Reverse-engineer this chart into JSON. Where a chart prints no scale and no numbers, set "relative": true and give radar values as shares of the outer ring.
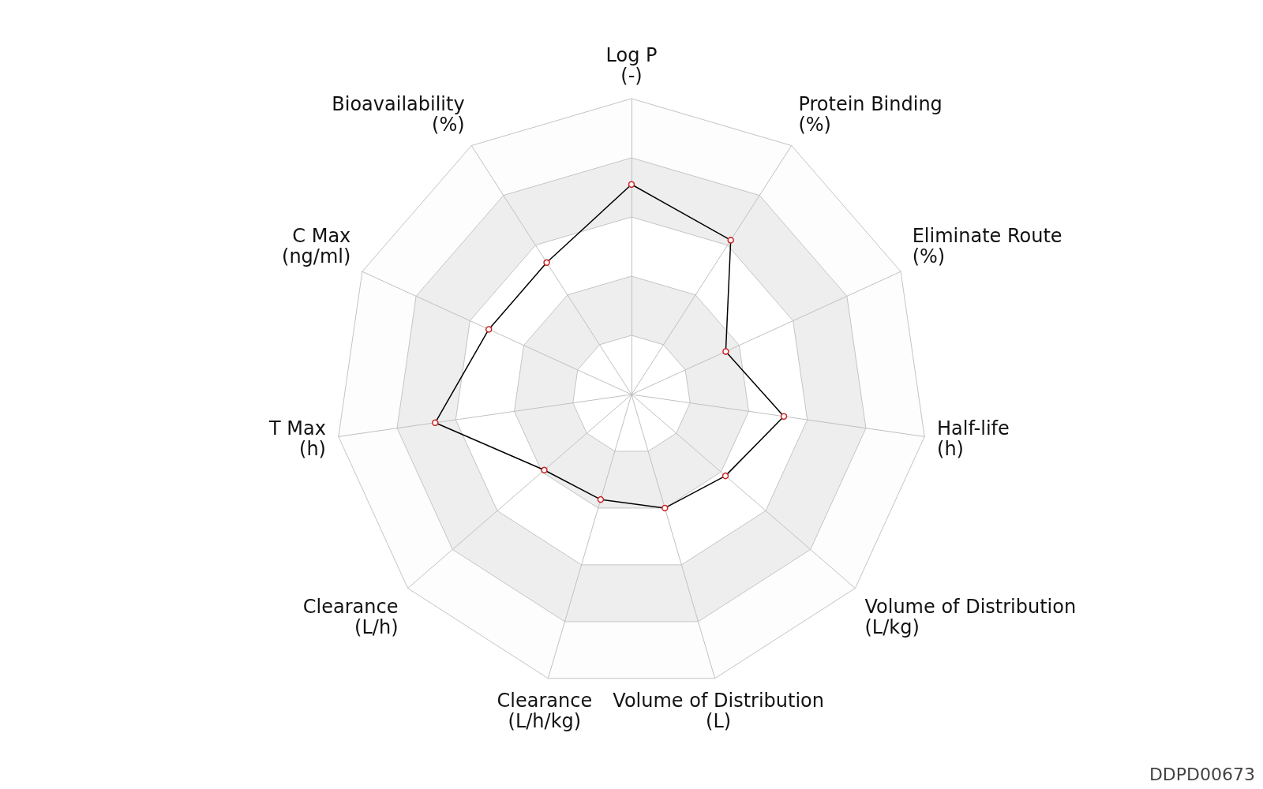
{
  "chart_data": {
    "type": "radar",
    "relative": true,
    "marker": "circle",
    "categories": [
      "Log P\n(-)",
      "Protein Binding\n(%)",
      "Eliminate Route\n(%)",
      "Half-life\n(h)",
      "Volume of Distribution\n(L/kg)",
      "Volume of Distribution\n(L)",
      "Clearance\n(L/h/kg)",
      "Clearance\n(L/h)",
      "T Max\n(h)",
      "C Max\n(ng/ml)",
      "Bioavailability\n(%)"
    ],
    "series": [
      {
        "color": "#000000",
        "values": [
          0.71,
          0.62,
          0.35,
          0.52,
          0.42,
          0.4,
          0.37,
          0.39,
          0.67,
          0.53,
          0.53
        ]
      }
    ],
    "annotations": [
      "DDPD00673"
    ]
  }
}
